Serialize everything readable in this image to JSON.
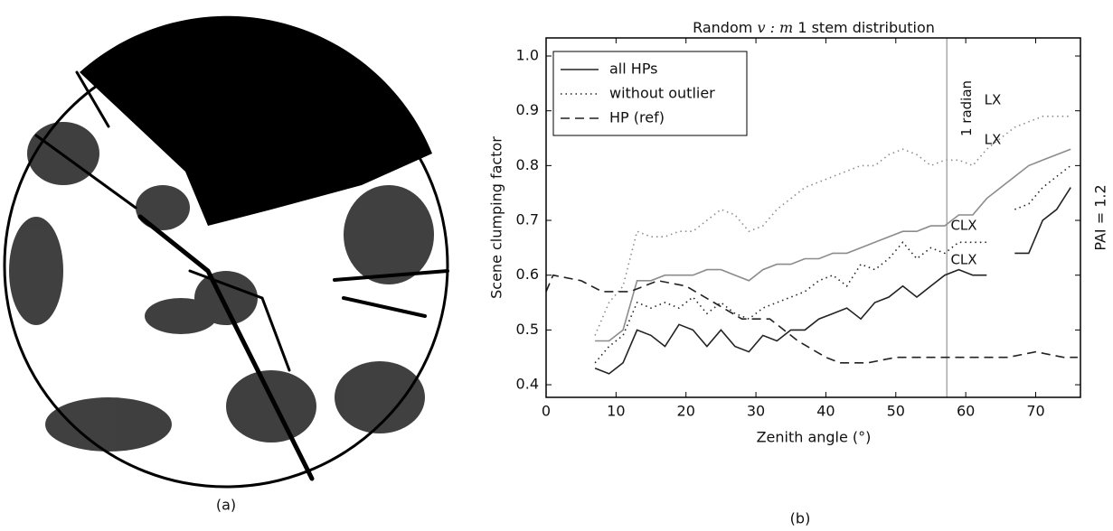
{
  "captions": [
    "(a)",
    "(b)"
  ],
  "chart_data": {
    "type": "line",
    "title": {
      "prefix": "Random",
      "math": "v : m",
      "suffix": "1 stem distribution"
    },
    "x_label": "Zenith angle (°)",
    "y_label": "Scene clumping factor",
    "side_label": "PAI = 1.2",
    "xlim": [
      0,
      76.4
    ],
    "ylim": [
      0.377,
      1.033
    ],
    "xticks": [
      0,
      10,
      20,
      30,
      40,
      50,
      60,
      70
    ],
    "yticks": [
      0.4,
      0.5,
      0.6,
      0.7,
      0.8,
      0.9,
      {
        "value": 1,
        "label": "1.0"
      }
    ],
    "vline": {
      "x": 57.3,
      "label": "1 radian",
      "color": "#aaaaaa"
    },
    "legend": "upper left",
    "series": [
      {
        "name": "all HPs",
        "style": "solid",
        "lines": [
          {
            "label": "LX",
            "color": "#8c8c8c",
            "x": [
              7,
              9,
              11,
              13,
              15,
              17,
              19,
              21,
              23,
              25,
              27,
              29,
              31,
              33,
              35,
              37,
              39,
              41,
              43,
              45,
              47,
              49,
              51,
              53,
              55,
              57,
              59,
              61,
              63,
              65,
              67,
              69,
              71,
              73,
              75
            ],
            "values": [
              0.48,
              0.48,
              0.5,
              0.59,
              0.59,
              0.6,
              0.6,
              0.6,
              0.61,
              0.61,
              0.6,
              0.59,
              0.61,
              0.62,
              0.62,
              0.63,
              0.63,
              0.64,
              0.64,
              0.65,
              0.66,
              0.67,
              0.68,
              0.68,
              0.69,
              0.69,
              0.71,
              0.71,
              0.74,
              0.76,
              0.78,
              0.8,
              0.81,
              0.82,
              0.83
            ]
          },
          {
            "label": "CLX",
            "color": "#222222",
            "x": [
              7,
              9,
              11,
              13,
              15,
              17,
              19,
              21,
              23,
              25,
              27,
              29,
              31,
              33,
              35,
              37,
              39,
              41,
              43,
              45,
              47,
              49,
              51,
              53,
              55,
              57,
              59,
              61,
              63,
              65,
              67,
              69,
              71,
              73,
              75
            ],
            "values": [
              0.43,
              0.42,
              0.44,
              0.5,
              0.49,
              0.47,
              0.51,
              0.5,
              0.47,
              0.5,
              0.47,
              0.46,
              0.49,
              0.48,
              0.5,
              0.5,
              0.52,
              0.53,
              0.54,
              0.52,
              0.55,
              0.56,
              0.58,
              0.56,
              0.58,
              0.6,
              0.61,
              0.6,
              0.6,
              null,
              0.64,
              0.64,
              0.7,
              0.72,
              0.76
            ]
          }
        ]
      },
      {
        "name": "without outlier",
        "style": "dotted",
        "lines": [
          {
            "label": "LX",
            "color": "#8c8c8c",
            "x": [
              7,
              9,
              11,
              13,
              15,
              17,
              19,
              21,
              23,
              25,
              27,
              29,
              31,
              33,
              35,
              37,
              39,
              41,
              43,
              45,
              47,
              49,
              51,
              53,
              55,
              57,
              59,
              61,
              63,
              65,
              67,
              69,
              71,
              73,
              75
            ],
            "values": [
              0.49,
              0.55,
              0.58,
              0.68,
              0.67,
              0.67,
              0.68,
              0.68,
              0.7,
              0.72,
              0.71,
              0.68,
              0.69,
              0.72,
              0.74,
              0.76,
              0.77,
              0.78,
              0.79,
              0.8,
              0.8,
              0.82,
              0.83,
              0.82,
              0.8,
              0.81,
              0.81,
              0.8,
              0.83,
              0.85,
              0.87,
              0.88,
              0.89,
              0.89,
              0.89
            ]
          },
          {
            "label": "CLX",
            "color": "#222222",
            "x": [
              7,
              9,
              11,
              13,
              15,
              17,
              19,
              21,
              23,
              25,
              27,
              29,
              31,
              33,
              35,
              37,
              39,
              41,
              43,
              45,
              47,
              49,
              51,
              53,
              55,
              57,
              59,
              61,
              63,
              65,
              67,
              69,
              71,
              73,
              75
            ],
            "values": [
              0.44,
              0.47,
              0.49,
              0.55,
              0.54,
              0.55,
              0.54,
              0.56,
              0.53,
              0.55,
              0.53,
              0.52,
              0.54,
              0.55,
              0.56,
              0.57,
              0.59,
              0.6,
              0.58,
              0.62,
              0.61,
              0.63,
              0.66,
              0.63,
              0.65,
              0.64,
              0.66,
              0.66,
              0.66,
              null,
              0.72,
              0.73,
              0.76,
              0.78,
              0.8
            ]
          }
        ]
      },
      {
        "name": "HP (ref)",
        "style": "dashed",
        "lines": [
          {
            "color": "#222222",
            "x": [
              0,
              1,
              5,
              8,
              12,
              16,
              20,
              24,
              28,
              32,
              36,
              40,
              42,
              46,
              50,
              54,
              58,
              62,
              66,
              70,
              74,
              76
            ],
            "values": [
              0.57,
              0.6,
              0.59,
              0.57,
              0.57,
              0.59,
              0.58,
              0.55,
              0.52,
              0.52,
              0.48,
              0.45,
              0.44,
              0.44,
              0.45,
              0.45,
              0.45,
              0.45,
              0.45,
              0.46,
              0.45,
              0.45
            ]
          }
        ]
      }
    ]
  }
}
